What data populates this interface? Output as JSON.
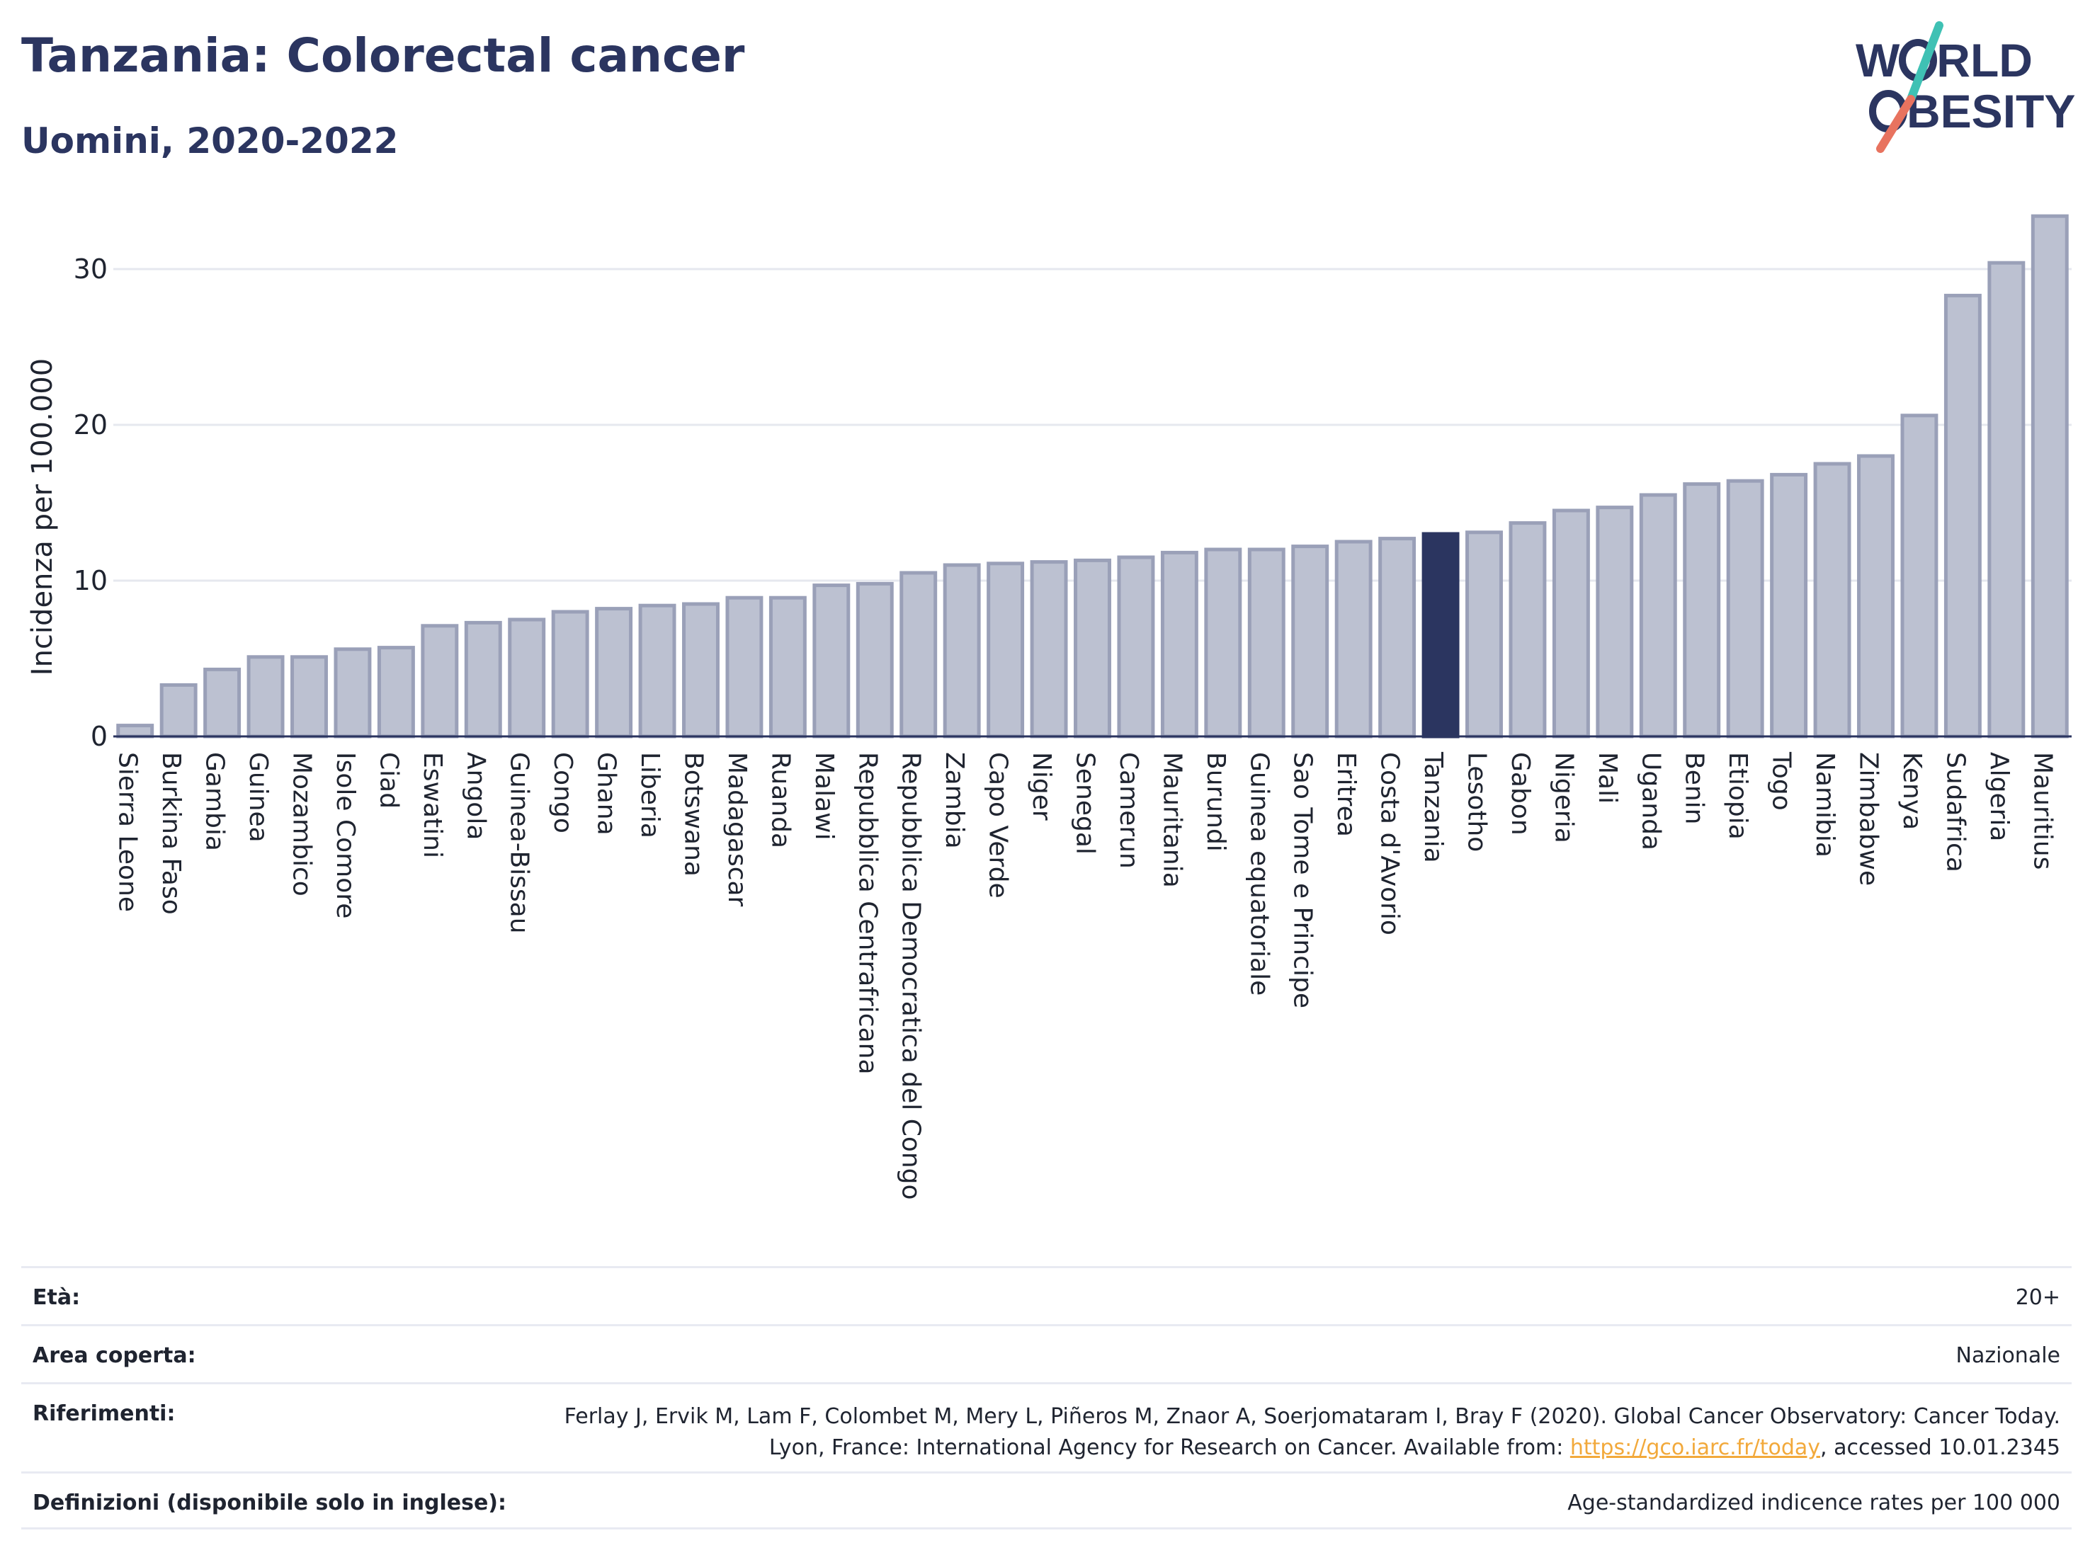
{
  "header": {
    "title": "Tanzania: Colorectal cancer",
    "subtitle": "Uomini, 2020-2022"
  },
  "logo": {
    "line1_pre": "W",
    "line1_post": "RLD",
    "line2_pre": "",
    "line2_post": "BESITY",
    "text": "WORLD OBESITY"
  },
  "colors": {
    "bar": "#bcc1d1",
    "bar_border": "#9aa0b8",
    "highlight": "#2b3560",
    "grid": "#e6e8ef",
    "text": "#2b3560",
    "logo_teal": "#3fc1b4",
    "logo_coral": "#e8735f"
  },
  "chart_data": {
    "type": "bar",
    "title": "Tanzania: Colorectal cancer",
    "subtitle": "Uomini, 2020-2022",
    "xlabel": "",
    "ylabel": "Incidenza per 100.000",
    "ylim": [
      0,
      34
    ],
    "yticks": [
      0,
      10,
      20,
      30
    ],
    "grid": true,
    "highlight": "Tanzania",
    "categories": [
      "Sierra Leone",
      "Burkina Faso",
      "Gambia",
      "Guinea",
      "Mozambico",
      "Isole Comore",
      "Ciad",
      "Eswatini",
      "Angola",
      "Guinea-Bissau",
      "Congo",
      "Ghana",
      "Liberia",
      "Botswana",
      "Madagascar",
      "Ruanda",
      "Malawi",
      "Repubblica Centrafricana",
      "Repubblica Democratica del Congo",
      "Zambia",
      "Capo Verde",
      "Niger",
      "Senegal",
      "Camerun",
      "Mauritania",
      "Burundi",
      "Guinea equatoriale",
      "Sao Tome e Principe",
      "Eritrea",
      "Costa d'Avorio",
      "Tanzania",
      "Lesotho",
      "Gabon",
      "Nigeria",
      "Mali",
      "Uganda",
      "Benin",
      "Etiopia",
      "Togo",
      "Namibia",
      "Zimbabwe",
      "Kenya",
      "Sudafrica",
      "Algeria",
      "Mauritius"
    ],
    "values": [
      0.7,
      3.3,
      4.3,
      5.1,
      5.1,
      5.6,
      5.7,
      7.1,
      7.3,
      7.5,
      8.0,
      8.2,
      8.4,
      8.5,
      8.9,
      8.9,
      9.7,
      9.8,
      10.5,
      11.0,
      11.1,
      11.2,
      11.3,
      11.5,
      11.8,
      12.0,
      12.0,
      12.2,
      12.5,
      12.7,
      13.0,
      13.1,
      13.7,
      14.5,
      14.7,
      15.5,
      16.2,
      16.4,
      16.8,
      17.5,
      18.0,
      20.6,
      28.3,
      30.4,
      33.4
    ]
  },
  "info": {
    "age_label": "Età:",
    "age_value": "20+",
    "area_label": "Area coperta:",
    "area_value": "Nazionale",
    "ref_label": "Riferimenti:",
    "ref_text_before": "Ferlay J, Ervik M, Lam F, Colombet M, Mery L, Piñeros M, Znaor A, Soerjomataram I, Bray F (2020). Global Cancer Observatory: Cancer Today. Lyon, France: International Agency for Research on Cancer. Available from: ",
    "ref_link": "https://gco.iarc.fr/today",
    "ref_text_after": ", accessed 10.01.2345",
    "def_label": "Definizioni (disponibile solo in inglese):",
    "def_value": "Age-standardized indicence rates per 100 000"
  }
}
